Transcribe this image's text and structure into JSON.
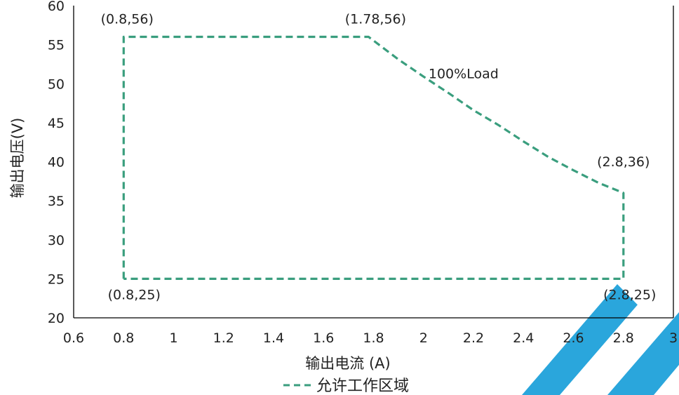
{
  "chart_data": {
    "type": "line",
    "title": "",
    "xlabel": "输出电流 (A)",
    "ylabel": "输出电压(V)",
    "xlim": [
      0.6,
      3
    ],
    "ylim": [
      20,
      60
    ],
    "x_ticks": [
      "0.6",
      "0.8",
      "1",
      "1.2",
      "1.4",
      "1.6",
      "1.8",
      "2",
      "2.2",
      "2.4",
      "2.6",
      "2.8",
      "3"
    ],
    "y_ticks": [
      "20",
      "25",
      "30",
      "35",
      "40",
      "45",
      "50",
      "55",
      "60"
    ],
    "grid": false,
    "legend_position": "bottom-center",
    "series": [
      {
        "name": "允许工作区域",
        "color": "#3a9e7e",
        "line_style": "dashed",
        "points": [
          {
            "x": 0.8,
            "y": 25
          },
          {
            "x": 0.8,
            "y": 56
          },
          {
            "x": 1.78,
            "y": 56
          },
          {
            "x": 1.9,
            "y": 53.1
          },
          {
            "x": 2.0,
            "y": 50.9
          },
          {
            "x": 2.1,
            "y": 48.8
          },
          {
            "x": 2.2,
            "y": 46.6
          },
          {
            "x": 2.3,
            "y": 44.7
          },
          {
            "x": 2.4,
            "y": 42.6
          },
          {
            "x": 2.5,
            "y": 40.6
          },
          {
            "x": 2.6,
            "y": 38.9
          },
          {
            "x": 2.7,
            "y": 37.3
          },
          {
            "x": 2.8,
            "y": 36
          },
          {
            "x": 2.8,
            "y": 25
          },
          {
            "x": 0.8,
            "y": 25
          }
        ]
      }
    ],
    "annotations": [
      {
        "text": "(0.8,56)",
        "x": 0.8,
        "y": 56
      },
      {
        "text": "(1.78,56)",
        "x": 1.78,
        "y": 56
      },
      {
        "text": "(2.8,36)",
        "x": 2.8,
        "y": 36
      },
      {
        "text": "(0.8,25)",
        "x": 0.8,
        "y": 25
      },
      {
        "text": "(2.8,25)",
        "x": 2.8,
        "y": 25
      },
      {
        "text": "100%Load",
        "x": 2.02,
        "y": 50.7
      }
    ]
  },
  "colors": {
    "axis": "#000000",
    "text": "#222222",
    "series": "#3a9e7e",
    "decoration": "#2aa6dc"
  }
}
